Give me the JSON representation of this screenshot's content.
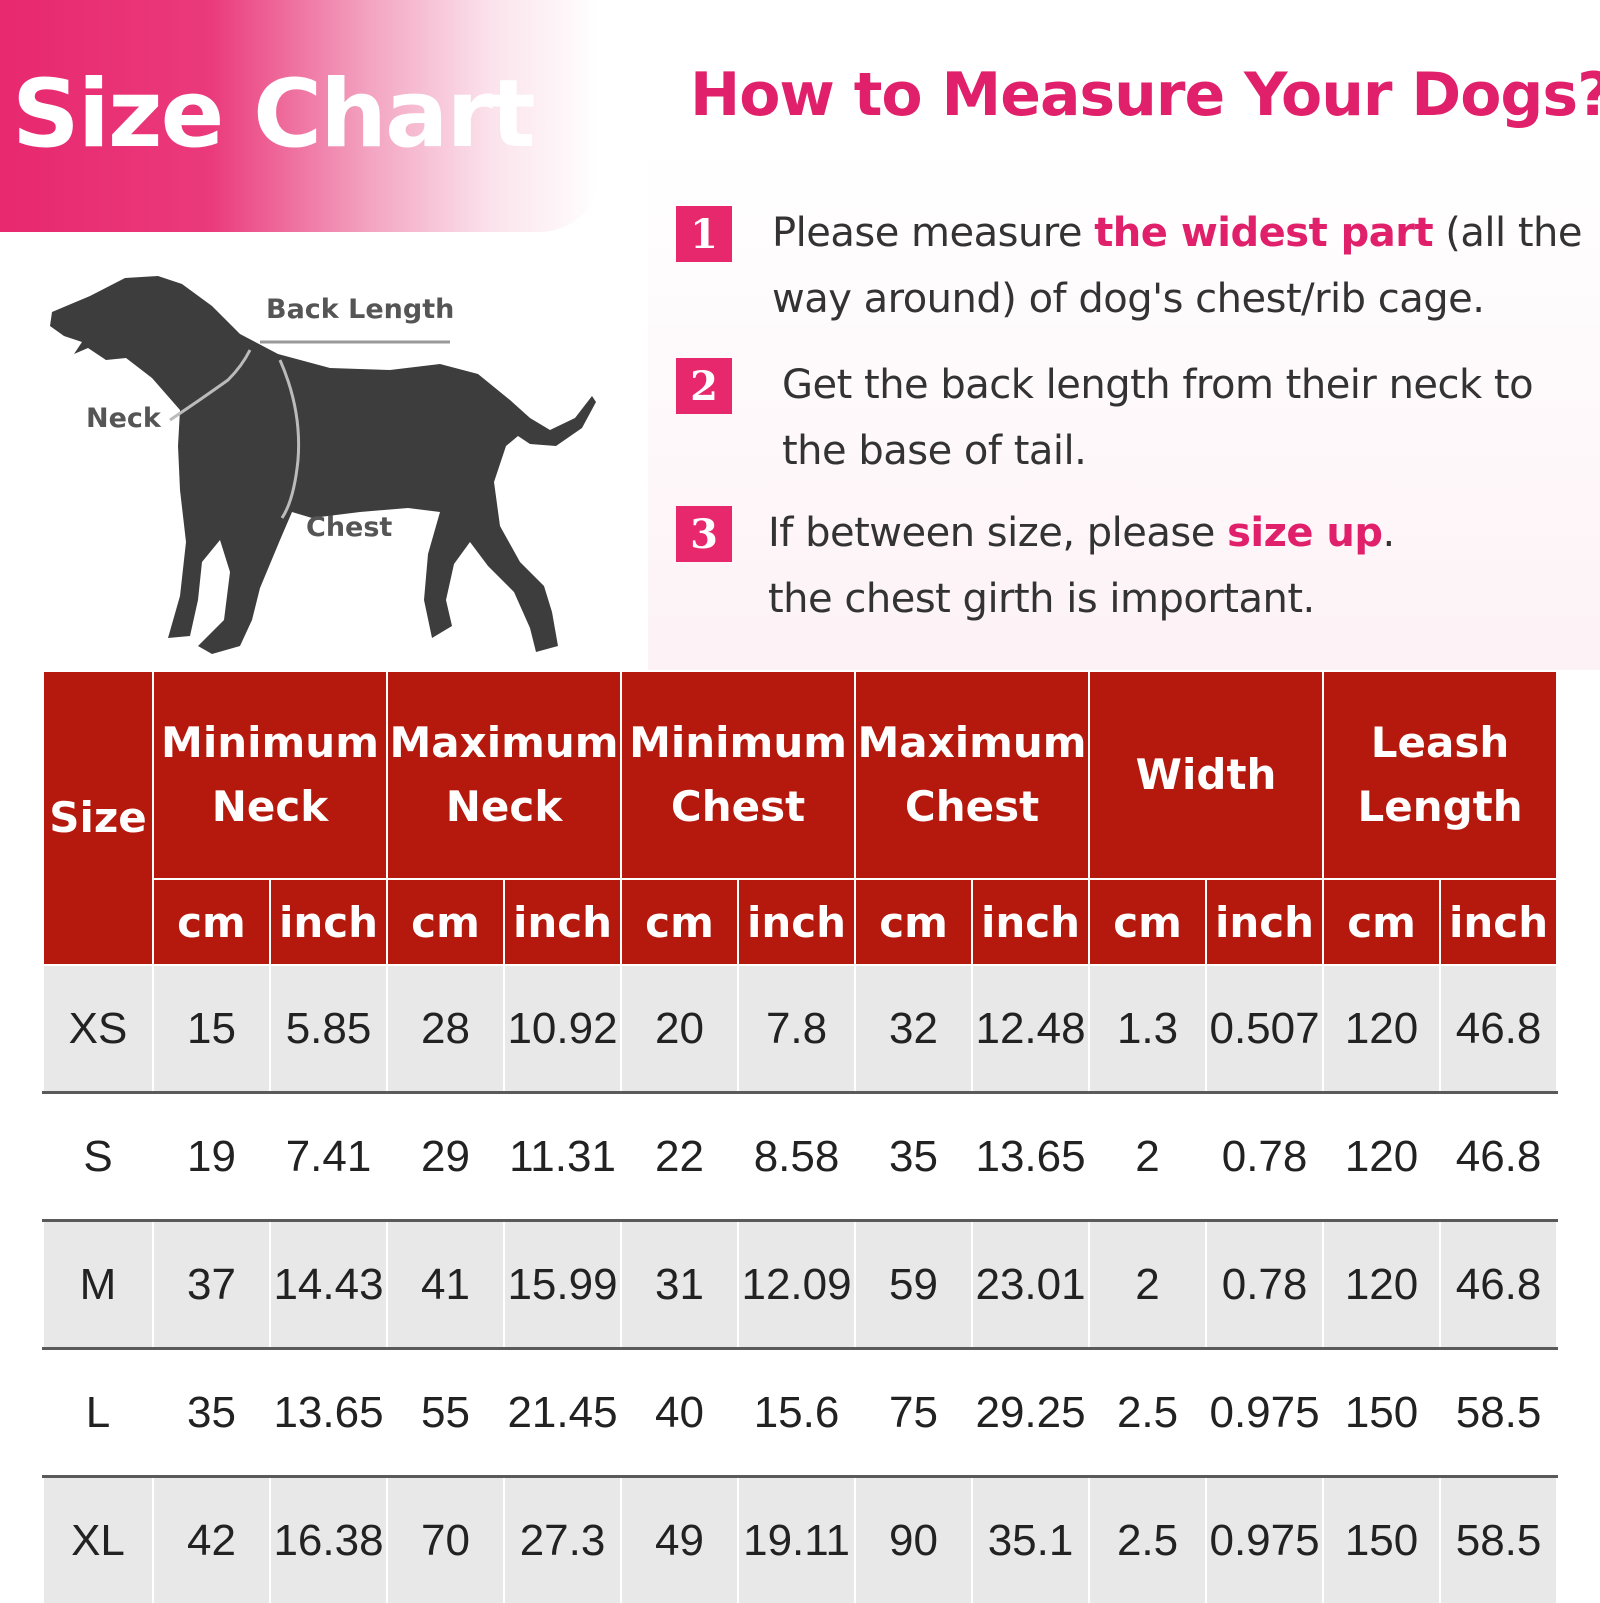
{
  "banner": {
    "title": "Size Chart"
  },
  "measure": {
    "title": "How to Measure Your Dogs?",
    "steps": [
      {
        "num": "1",
        "text_pre": "Please measure ",
        "text_highlight": "the widest part",
        "text_post": " (all the way around) of dog's chest/rib cage."
      },
      {
        "num": "2",
        "text_pre": "Get the back length from their neck to the base of tail.",
        "text_highlight": "",
        "text_post": ""
      },
      {
        "num": "3",
        "text_pre": "If between size, please ",
        "text_highlight": "size up",
        "text_post": ".",
        "line2": "the chest girth is  important."
      }
    ]
  },
  "dog_labels": {
    "back_length": "Back Length",
    "neck": "Neck",
    "chest": "Chest"
  },
  "colors": {
    "accent_pink": "#e0206a",
    "table_header_red": "#b5180c",
    "row_gray": "#e8e8e8"
  },
  "table": {
    "size_header": "Size",
    "groups": [
      {
        "line1": "Minimum",
        "line2": "Neck"
      },
      {
        "line1": "Maximum",
        "line2": "Neck"
      },
      {
        "line1": "Minimum",
        "line2": "Chest"
      },
      {
        "line1": "Maximum",
        "line2": "Chest"
      },
      {
        "line1": "Width",
        "line2": ""
      },
      {
        "line1": "Leash",
        "line2": "Length"
      }
    ],
    "units": [
      "cm",
      "inch"
    ],
    "rows": [
      {
        "size": "XS",
        "values": [
          "15",
          "5.85",
          "28",
          "10.92",
          "20",
          "7.8",
          "32",
          "12.48",
          "1.3",
          "0.507",
          "120",
          "46.8"
        ]
      },
      {
        "size": "S",
        "values": [
          "19",
          "7.41",
          "29",
          "11.31",
          "22",
          "8.58",
          "35",
          "13.65",
          "2",
          "0.78",
          "120",
          "46.8"
        ]
      },
      {
        "size": "M",
        "values": [
          "37",
          "14.43",
          "41",
          "15.99",
          "31",
          "12.09",
          "59",
          "23.01",
          "2",
          "0.78",
          "120",
          "46.8"
        ]
      },
      {
        "size": "L",
        "values": [
          "35",
          "13.65",
          "55",
          "21.45",
          "40",
          "15.6",
          "75",
          "29.25",
          "2.5",
          "0.975",
          "150",
          "58.5"
        ]
      },
      {
        "size": "XL",
        "values": [
          "42",
          "16.38",
          "70",
          "27.3",
          "49",
          "19.11",
          "90",
          "35.1",
          "2.5",
          "0.975",
          "150",
          "58.5"
        ]
      }
    ]
  }
}
